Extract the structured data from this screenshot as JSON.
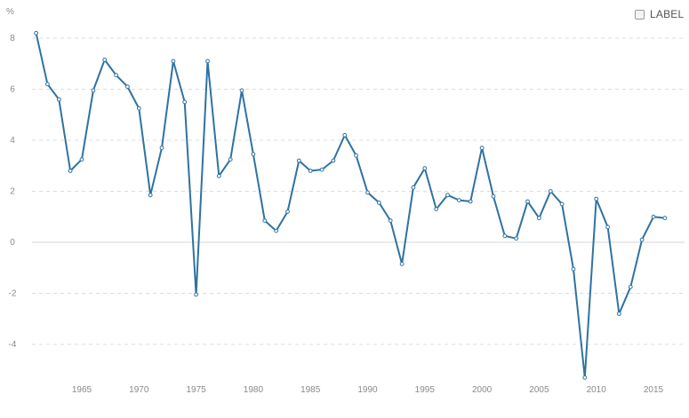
{
  "legend": {
    "label": "LABEL",
    "checked": false
  },
  "colors": {
    "line": "#2f72a2",
    "marker_fill": "#ffffff",
    "grid": "#dcdcdc",
    "zero_line": "#d4d4d4",
    "tick_text": "#8a8a8a",
    "legend_box_border": "#9b9b9b"
  },
  "chart_data": {
    "type": "line",
    "title": "",
    "xlabel": "",
    "ylabel": "%",
    "xlim": [
      1961,
      2016
    ],
    "ylim": [
      -5.4,
      8.4
    ],
    "x_ticks": [
      1965,
      1970,
      1975,
      1980,
      1985,
      1990,
      1995,
      2000,
      2005,
      2010,
      2015
    ],
    "y_ticks": [
      -4,
      -2,
      0,
      2,
      4,
      6,
      8
    ],
    "grid": true,
    "grid_style": "dashed-horizontal",
    "legend_position": "top-right",
    "series": [
      {
        "x": [
          1961,
          1962,
          1963,
          1964,
          1965,
          1966,
          1967,
          1968,
          1969,
          1970,
          1971,
          1972,
          1973,
          1974,
          1975,
          1976,
          1977,
          1978,
          1979,
          1980,
          1981,
          1982,
          1983,
          1984,
          1985,
          1986,
          1987,
          1988,
          1989,
          1990,
          1991,
          1992,
          1993,
          1994,
          1995,
          1996,
          1997,
          1998,
          1999,
          2000,
          2001,
          2002,
          2003,
          2004,
          2005,
          2006,
          2007,
          2008,
          2009,
          2010,
          2011,
          2012,
          2013,
          2014,
          2015,
          2016
        ],
        "values": [
          8.2,
          6.2,
          5.6,
          2.8,
          3.25,
          5.95,
          7.15,
          6.55,
          6.1,
          5.25,
          1.85,
          3.7,
          7.1,
          5.5,
          -2.05,
          7.1,
          2.6,
          3.25,
          5.95,
          3.45,
          0.85,
          0.45,
          1.2,
          3.2,
          2.8,
          2.85,
          3.2,
          4.2,
          3.4,
          1.95,
          1.55,
          0.85,
          -0.85,
          2.15,
          2.9,
          1.3,
          1.85,
          1.65,
          1.6,
          3.7,
          1.8,
          0.25,
          0.15,
          1.6,
          0.95,
          2.0,
          1.5,
          -1.05,
          -5.3,
          1.7,
          0.6,
          -2.8,
          -1.75,
          0.1,
          1.0,
          0.95
        ]
      }
    ]
  }
}
